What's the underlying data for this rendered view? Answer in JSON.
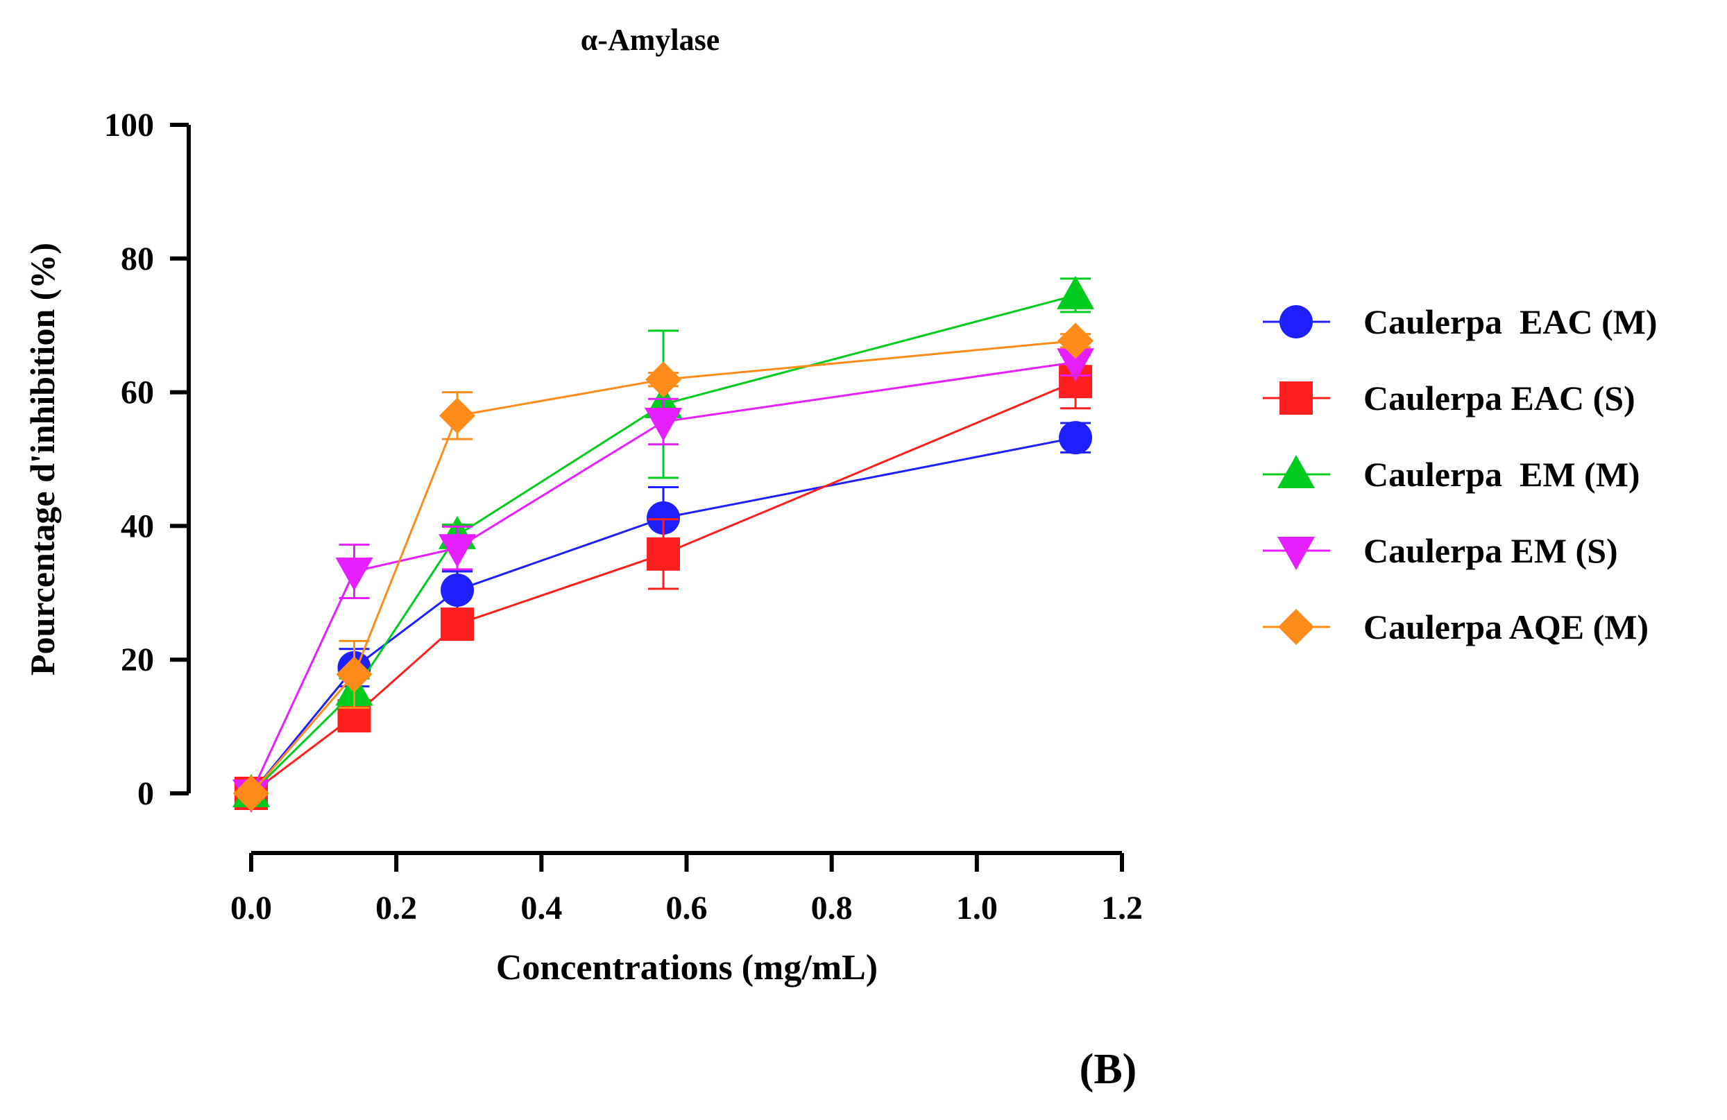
{
  "panel_label": "(B)",
  "chart_data": {
    "type": "line",
    "title": "α-Amylase",
    "xlabel": "Concentrations (mg/mL)",
    "ylabel": "Pourcentage d'inhibition (%)",
    "xlim": [
      0,
      1.2
    ],
    "ylim": [
      0,
      100
    ],
    "xticks": [
      0.0,
      0.2,
      0.4,
      0.6,
      0.8,
      1.0,
      1.2
    ],
    "xtick_labels": [
      "0.0",
      "0.2",
      "0.4",
      "0.6",
      "0.8",
      "1.0",
      "1.2"
    ],
    "yticks": [
      0,
      20,
      40,
      60,
      80,
      100
    ],
    "ytick_labels": [
      "0",
      "20",
      "40",
      "60",
      "80",
      "100"
    ],
    "grid": false,
    "legend_position": "right",
    "x": [
      0,
      0.142,
      0.284,
      0.568,
      1.136
    ],
    "series": [
      {
        "name": "Caulerpa  EAC (M)",
        "color": "#1f1fff",
        "marker": "circle",
        "values": [
          0,
          18.8,
          30.4,
          41.2,
          53.2
        ],
        "errors": [
          0,
          2.8,
          2.8,
          4.6,
          2.2
        ]
      },
      {
        "name": "Caulerpa EAC (S)",
        "color": "#ff1f1f",
        "marker": "square",
        "values": [
          0,
          11.6,
          25.3,
          35.8,
          61.6
        ],
        "errors": [
          0,
          1.5,
          2.0,
          5.2,
          4.0
        ]
      },
      {
        "name": "Caulerpa  EM (M)",
        "color": "#00cc1f",
        "marker": "triangle-up",
        "values": [
          0,
          15.2,
          38.6,
          58.2,
          74.5
        ],
        "errors": [
          0,
          2.0,
          1.6,
          11.0,
          2.5
        ]
      },
      {
        "name": "Caulerpa EM (S)",
        "color": "#e51fff",
        "marker": "triangle-down",
        "values": [
          0,
          33.2,
          36.7,
          55.6,
          64.5
        ],
        "errors": [
          0,
          4.0,
          3.2,
          3.4,
          2.0
        ]
      },
      {
        "name": "Caulerpa AQE (M)",
        "color": "#ff8c1a",
        "marker": "diamond",
        "values": [
          0,
          17.8,
          56.5,
          61.9,
          67.7
        ],
        "errors": [
          0,
          5.0,
          3.5,
          1.0,
          1.0
        ]
      }
    ]
  }
}
